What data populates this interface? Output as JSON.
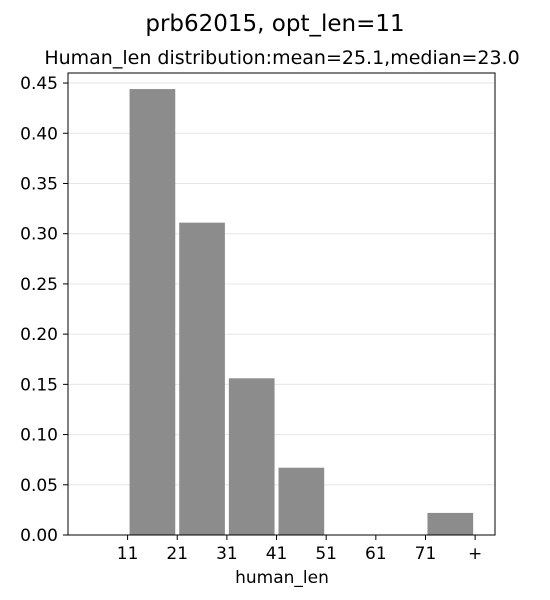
{
  "chart_data": {
    "type": "bar",
    "title": "prb62015, opt_len=11",
    "subtitle": "Human_len distribution:mean=25.1,median=23.0",
    "xlabel": "human_len",
    "ylabel": "",
    "x_tick_labels": [
      "11",
      "21",
      "31",
      "41",
      "51",
      "61",
      "71",
      "+"
    ],
    "bar_starts": [
      11,
      21,
      31,
      41,
      51,
      61,
      71
    ],
    "bin_width": 10,
    "values": [
      0.444,
      0.311,
      0.156,
      0.067,
      0.0,
      0.0,
      0.022
    ],
    "xlim": [
      -1,
      85
    ],
    "ylim": [
      0,
      0.46
    ],
    "y_ticks": [
      0.0,
      0.05,
      0.1,
      0.15,
      0.2,
      0.25,
      0.3,
      0.35,
      0.4,
      0.45
    ],
    "y_tick_labels": [
      "0.00",
      "0.05",
      "0.10",
      "0.15",
      "0.20",
      "0.25",
      "0.30",
      "0.35",
      "0.40",
      "0.45"
    ],
    "grid": true,
    "bar_color": "#8c8c8c",
    "grid_color": "#e6e6e6",
    "axis_color": "#000000"
  }
}
